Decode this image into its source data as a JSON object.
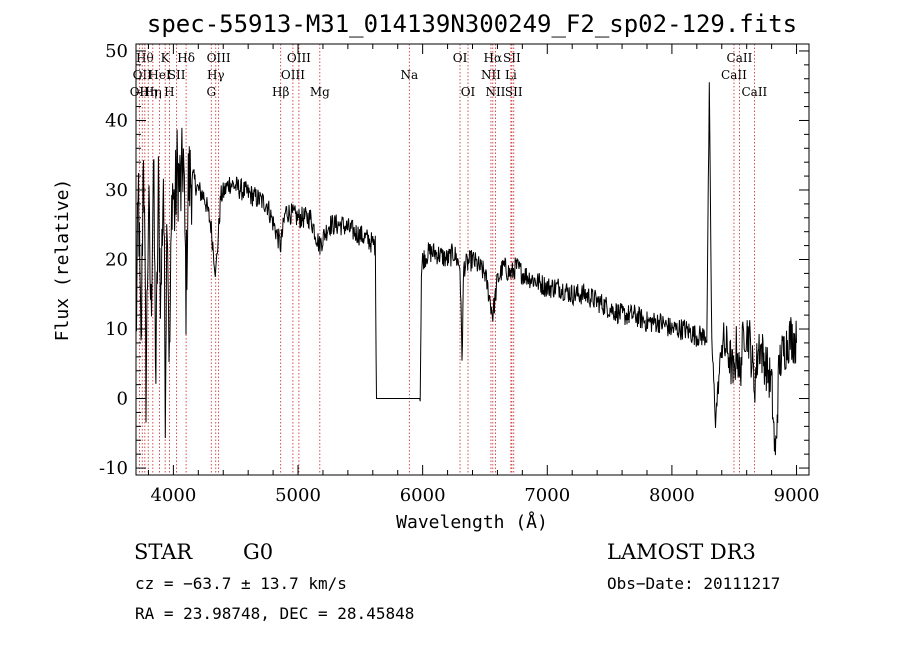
{
  "chart_data": {
    "type": "line",
    "title": "spec-55913-M31_014139N300249_F2_sp02-129.fits",
    "xlabel": "Wavelength (Å)",
    "ylabel": "Flux (relative)",
    "xlim": [
      3700,
      9100
    ],
    "ylim": [
      -11,
      51
    ],
    "xticks": [
      4000,
      5000,
      6000,
      7000,
      8000,
      9000
    ],
    "yticks": [
      -10,
      0,
      10,
      20,
      30,
      40,
      50
    ],
    "grid": false,
    "series": [
      {
        "name": "spectrum",
        "anchors": [
          [
            3700,
            8
          ],
          [
            3720,
            30
          ],
          [
            3740,
            5
          ],
          [
            3760,
            38
          ],
          [
            3780,
            2
          ],
          [
            3800,
            28
          ],
          [
            3820,
            12
          ],
          [
            3840,
            34
          ],
          [
            3860,
            3
          ],
          [
            3880,
            30
          ],
          [
            3900,
            14
          ],
          [
            3920,
            33
          ],
          [
            3935,
            1
          ],
          [
            3950,
            30
          ],
          [
            3968,
            4
          ],
          [
            3990,
            31
          ],
          [
            4010,
            27
          ],
          [
            4030,
            33
          ],
          [
            4060,
            30
          ],
          [
            4080,
            35
          ],
          [
            4101,
            15
          ],
          [
            4120,
            31
          ],
          [
            4150,
            32
          ],
          [
            4200,
            30
          ],
          [
            4250,
            29
          ],
          [
            4300,
            25
          ],
          [
            4340,
            18
          ],
          [
            4380,
            29
          ],
          [
            4450,
            31
          ],
          [
            4550,
            30
          ],
          [
            4650,
            29
          ],
          [
            4750,
            28
          ],
          [
            4861,
            22
          ],
          [
            4900,
            27
          ],
          [
            5000,
            26
          ],
          [
            5100,
            26
          ],
          [
            5172,
            22
          ],
          [
            5250,
            25
          ],
          [
            5350,
            25
          ],
          [
            5450,
            24
          ],
          [
            5550,
            23
          ],
          [
            5620,
            22
          ],
          [
            5630,
            0
          ],
          [
            5980,
            0
          ],
          [
            5990,
            18
          ],
          [
            6000,
            20
          ],
          [
            6050,
            21
          ],
          [
            6100,
            21
          ],
          [
            6200,
            20
          ],
          [
            6250,
            21
          ],
          [
            6300,
            19
          ],
          [
            6316,
            6
          ],
          [
            6330,
            19
          ],
          [
            6400,
            20
          ],
          [
            6450,
            19
          ],
          [
            6500,
            18
          ],
          [
            6563,
            12
          ],
          [
            6600,
            17
          ],
          [
            6650,
            19
          ],
          [
            6700,
            18
          ],
          [
            6716,
            18
          ],
          [
            6750,
            19
          ],
          [
            6800,
            18
          ],
          [
            6900,
            17
          ],
          [
            7000,
            16
          ],
          [
            7100,
            16
          ],
          [
            7200,
            15
          ],
          [
            7300,
            15
          ],
          [
            7400,
            14
          ],
          [
            7500,
            13
          ],
          [
            7600,
            12
          ],
          [
            7700,
            12
          ],
          [
            7800,
            11
          ],
          [
            7900,
            11
          ],
          [
            8000,
            10
          ],
          [
            8100,
            10
          ],
          [
            8200,
            9
          ],
          [
            8280,
            9
          ],
          [
            8300,
            44
          ],
          [
            8320,
            8
          ],
          [
            8350,
            -3
          ],
          [
            8400,
            8
          ],
          [
            8450,
            7
          ],
          [
            8498,
            3
          ],
          [
            8520,
            8
          ],
          [
            8542,
            3
          ],
          [
            8580,
            10
          ],
          [
            8620,
            9
          ],
          [
            8662,
            2
          ],
          [
            8700,
            8
          ],
          [
            8750,
            5
          ],
          [
            8800,
            2
          ],
          [
            8830,
            -9
          ],
          [
            8860,
            5
          ],
          [
            8900,
            7
          ],
          [
            8950,
            9
          ],
          [
            9000,
            8
          ]
        ]
      }
    ],
    "lines": [
      {
        "wl": 3727,
        "label": "OII",
        "row": 3
      },
      {
        "wl": 3750,
        "label": "OII",
        "row": 2
      },
      {
        "wl": 3771,
        "label": "Hθ",
        "row": 1
      },
      {
        "wl": 3798,
        "label": "Hη",
        "row": 3
      },
      {
        "wl": 3835,
        "label": "Hη",
        "row": 3
      },
      {
        "wl": 3889,
        "label": "HeI",
        "row": 2
      },
      {
        "wl": 3934,
        "label": "K",
        "row": 1
      },
      {
        "wl": 3968,
        "label": "H",
        "row": 3
      },
      {
        "wl": 4026,
        "label": "SII",
        "row": 2
      },
      {
        "wl": 4102,
        "label": "Hδ",
        "row": 1
      },
      {
        "wl": 4304,
        "label": "G",
        "row": 3
      },
      {
        "wl": 4340,
        "label": "Hγ",
        "row": 2
      },
      {
        "wl": 4363,
        "label": "OIII",
        "row": 1
      },
      {
        "wl": 4861,
        "label": "Hβ",
        "row": 3
      },
      {
        "wl": 4959,
        "label": "OIII",
        "row": 2
      },
      {
        "wl": 5007,
        "label": "OIII",
        "row": 1
      },
      {
        "wl": 5175,
        "label": "Mg",
        "row": 3
      },
      {
        "wl": 5893,
        "label": "Na",
        "row": 2
      },
      {
        "wl": 6300,
        "label": "OI",
        "row": 1
      },
      {
        "wl": 6364,
        "label": "OI",
        "row": 3
      },
      {
        "wl": 6548,
        "label": "NII",
        "row": 2
      },
      {
        "wl": 6563,
        "label": "Hα",
        "row": 1
      },
      {
        "wl": 6584,
        "label": "NII",
        "row": 3
      },
      {
        "wl": 6708,
        "label": "Li",
        "row": 2
      },
      {
        "wl": 6716,
        "label": "SII",
        "row": 1
      },
      {
        "wl": 6731,
        "label": "SII",
        "row": 3
      },
      {
        "wl": 8498,
        "label": "CaII",
        "row": 2
      },
      {
        "wl": 8542,
        "label": "CaII",
        "row": 1
      },
      {
        "wl": 8662,
        "label": "CaII",
        "row": 3
      }
    ]
  },
  "info": {
    "class": "STAR",
    "subclass": "G0",
    "survey": "LAMOST DR3",
    "cz": "cz = −63.7 ± 13.7 km/s",
    "obs_date": "Obs−Date: 20111217",
    "coords": "RA =  23.98748, DEC =  28.45848"
  },
  "colors": {
    "line_marker": "#cc2222",
    "spectrum": "#000000",
    "axes": "#000000"
  }
}
